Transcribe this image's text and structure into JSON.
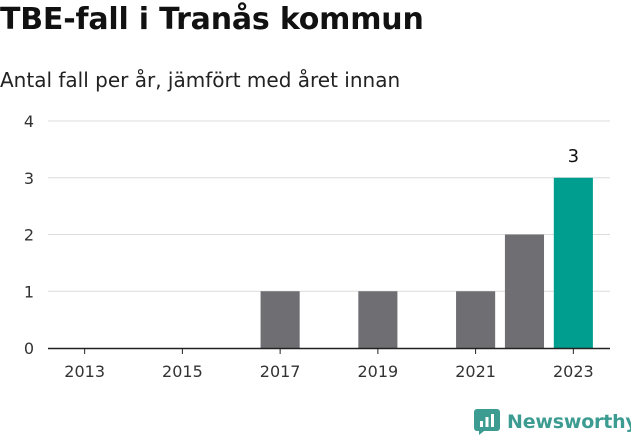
{
  "header": {
    "title": "TBE-fall i Tranås kommun",
    "subtitle": "Antal fall per år, jämfört med året innan"
  },
  "brand": {
    "name": "Newsworthy",
    "icon": "bar-chart-logo-icon",
    "color": "#3d9c92"
  },
  "chart_data": {
    "type": "bar",
    "categories": [
      "2013",
      "2014",
      "2015",
      "2016",
      "2017",
      "2018",
      "2019",
      "2020",
      "2021",
      "2022",
      "2023"
    ],
    "values": [
      0,
      0,
      0,
      0,
      1,
      0,
      1,
      0,
      1,
      2,
      3
    ],
    "x_tick_labels": [
      "2013",
      "2015",
      "2017",
      "2019",
      "2021",
      "2023"
    ],
    "y_ticks": [
      0,
      1,
      2,
      3,
      4
    ],
    "ylim": [
      0,
      4
    ],
    "grid": true,
    "highlight_category": "2023",
    "data_labels": [
      {
        "category": "2023",
        "text": "3"
      }
    ],
    "colors": {
      "default": "#6f6e73",
      "highlight": "#009e8f"
    },
    "xlabel": "",
    "ylabel": ""
  }
}
